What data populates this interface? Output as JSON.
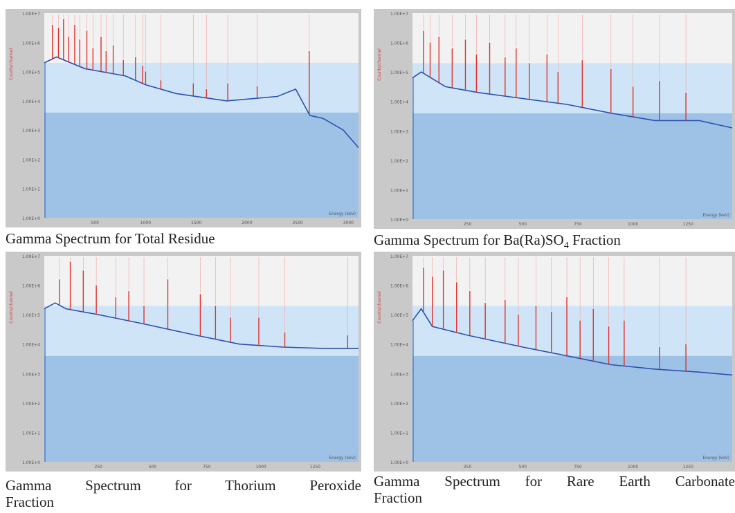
{
  "captions": {
    "total_residue": "Gamma Spectrum for Total Residue",
    "baso4_pre": "Gamma Spectrum for Ba(Ra)SO",
    "baso4_sub": "4",
    "baso4_post": " Fraction",
    "thorium_line1": "Gamma Spectrum for Thorium Peroxide",
    "thorium_line2": "Fraction",
    "rare_earth_line1": "Gamma Spectrum for Rare Earth Carbonate",
    "rare_earth_line2": "Fraction"
  },
  "chart_data": [
    {
      "type": "line",
      "title": "Gamma Spectrum for Total Residue",
      "xlabel": "Energy (keV)",
      "ylabel": "Counts/channel",
      "y_scale": "log",
      "x_ticks": [
        "500",
        "1000",
        "1500",
        "2000",
        "2500",
        "3000"
      ],
      "y_ticks": [
        "1.00E+7",
        "1.00E+6",
        "1.00E+5",
        "1.00E+4",
        "1.00E+3",
        "1.00E+2",
        "1.00E+1",
        "1.00E+0"
      ],
      "xlim": [
        0,
        3100
      ],
      "ylim_decades": [
        0,
        7
      ],
      "baseline": [
        [
          0,
          5.3
        ],
        [
          120,
          5.5
        ],
        [
          400,
          5.1
        ],
        [
          800,
          4.85
        ],
        [
          1000,
          4.55
        ],
        [
          1300,
          4.25
        ],
        [
          1800,
          4.0
        ],
        [
          2300,
          4.15
        ],
        [
          2480,
          4.4
        ],
        [
          2620,
          3.5
        ],
        [
          2750,
          3.4
        ],
        [
          2950,
          3.0
        ],
        [
          3100,
          2.4
        ]
      ],
      "peaks": [
        [
          80,
          6.6
        ],
        [
          140,
          6.5
        ],
        [
          190,
          6.8
        ],
        [
          240,
          6.2
        ],
        [
          300,
          6.6
        ],
        [
          350,
          6.1
        ],
        [
          420,
          6.4
        ],
        [
          480,
          5.8
        ],
        [
          560,
          6.2
        ],
        [
          610,
          5.7
        ],
        [
          680,
          5.9
        ],
        [
          780,
          5.4
        ],
        [
          900,
          5.5
        ],
        [
          970,
          5.2
        ],
        [
          1000,
          5.0
        ],
        [
          1150,
          4.7
        ],
        [
          1470,
          4.6
        ],
        [
          1600,
          4.4
        ],
        [
          1810,
          4.6
        ],
        [
          2100,
          4.5
        ],
        [
          2614,
          5.7
        ]
      ]
    },
    {
      "type": "line",
      "title": "Gamma Spectrum for Ba(Ra)SO4 Fraction",
      "xlabel": "Energy (keV)",
      "ylabel": "Counts/channel",
      "y_scale": "log",
      "x_ticks": [
        "250",
        "500",
        "750",
        "1000",
        "1250"
      ],
      "y_ticks": [
        "1.00E+7",
        "1.00E+6",
        "1.00E+5",
        "1.00E+4",
        "1.00E+3",
        "1.00E+2",
        "1.00E+1",
        "1.00E+0"
      ],
      "xlim": [
        0,
        1450
      ],
      "ylim_decades": [
        0,
        7
      ],
      "baseline": [
        [
          0,
          4.8
        ],
        [
          40,
          5.0
        ],
        [
          150,
          4.5
        ],
        [
          300,
          4.3
        ],
        [
          500,
          4.1
        ],
        [
          700,
          3.9
        ],
        [
          900,
          3.6
        ],
        [
          1100,
          3.35
        ],
        [
          1300,
          3.35
        ],
        [
          1450,
          3.1
        ]
      ],
      "peaks": [
        [
          50,
          6.4
        ],
        [
          80,
          6.0
        ],
        [
          120,
          6.2
        ],
        [
          180,
          5.8
        ],
        [
          240,
          6.1
        ],
        [
          290,
          5.6
        ],
        [
          350,
          6.0
        ],
        [
          420,
          5.5
        ],
        [
          470,
          5.8
        ],
        [
          530,
          5.3
        ],
        [
          610,
          5.6
        ],
        [
          660,
          5.0
        ],
        [
          770,
          5.4
        ],
        [
          900,
          5.1
        ],
        [
          1000,
          4.5
        ],
        [
          1120,
          4.7
        ],
        [
          1240,
          4.3
        ]
      ]
    },
    {
      "type": "line",
      "title": "Gamma Spectrum for Thorium Peroxide Fraction",
      "xlabel": "Energy (keV)",
      "ylabel": "Counts/channel",
      "y_scale": "log",
      "x_ticks": [
        "250",
        "500",
        "750",
        "1000",
        "1250"
      ],
      "y_ticks": [
        "1.00E+7",
        "1.00E+6",
        "1.00E+5",
        "1.00E+4",
        "1.00E+3",
        "1.00E+2",
        "1.00E+1",
        "1.00E+0"
      ],
      "xlim": [
        0,
        1450
      ],
      "ylim_decades": [
        0,
        7
      ],
      "baseline": [
        [
          0,
          5.2
        ],
        [
          50,
          5.4
        ],
        [
          100,
          5.2
        ],
        [
          250,
          5.0
        ],
        [
          450,
          4.7
        ],
        [
          700,
          4.3
        ],
        [
          900,
          4.0
        ],
        [
          1100,
          3.9
        ],
        [
          1300,
          3.85
        ],
        [
          1450,
          3.85
        ]
      ],
      "peaks": [
        [
          70,
          6.2
        ],
        [
          120,
          6.8
        ],
        [
          180,
          6.5
        ],
        [
          240,
          6.0
        ],
        [
          330,
          5.6
        ],
        [
          390,
          5.8
        ],
        [
          460,
          5.3
        ],
        [
          570,
          6.2
        ],
        [
          720,
          5.7
        ],
        [
          790,
          5.3
        ],
        [
          860,
          4.9
        ],
        [
          990,
          4.9
        ],
        [
          1110,
          4.4
        ],
        [
          1400,
          4.3
        ]
      ]
    },
    {
      "type": "line",
      "title": "Gamma Spectrum for Rare Earth Carbonate Fraction",
      "xlabel": "Energy (keV)",
      "ylabel": "Counts/channel",
      "y_scale": "log",
      "x_ticks": [
        "250",
        "500",
        "750",
        "1000",
        "1250"
      ],
      "y_ticks": [
        "1.00E+7",
        "1.00E+6",
        "1.00E+5",
        "1.00E+4",
        "1.00E+3",
        "1.00E+2",
        "1.00E+1",
        "1.00E+0"
      ],
      "xlim": [
        0,
        1450
      ],
      "ylim_decades": [
        0,
        7
      ],
      "baseline": [
        [
          0,
          4.8
        ],
        [
          40,
          5.2
        ],
        [
          90,
          4.6
        ],
        [
          250,
          4.3
        ],
        [
          500,
          3.9
        ],
        [
          700,
          3.6
        ],
        [
          900,
          3.3
        ],
        [
          1100,
          3.15
        ],
        [
          1300,
          3.05
        ],
        [
          1450,
          2.95
        ]
      ],
      "peaks": [
        [
          50,
          6.6
        ],
        [
          90,
          6.3
        ],
        [
          140,
          6.5
        ],
        [
          200,
          6.1
        ],
        [
          260,
          5.8
        ],
        [
          330,
          5.4
        ],
        [
          420,
          5.5
        ],
        [
          480,
          5.0
        ],
        [
          560,
          5.3
        ],
        [
          630,
          5.1
        ],
        [
          700,
          5.6
        ],
        [
          760,
          4.8
        ],
        [
          820,
          5.2
        ],
        [
          890,
          4.6
        ],
        [
          960,
          4.8
        ],
        [
          1120,
          3.9
        ],
        [
          1240,
          4.0
        ]
      ]
    }
  ]
}
